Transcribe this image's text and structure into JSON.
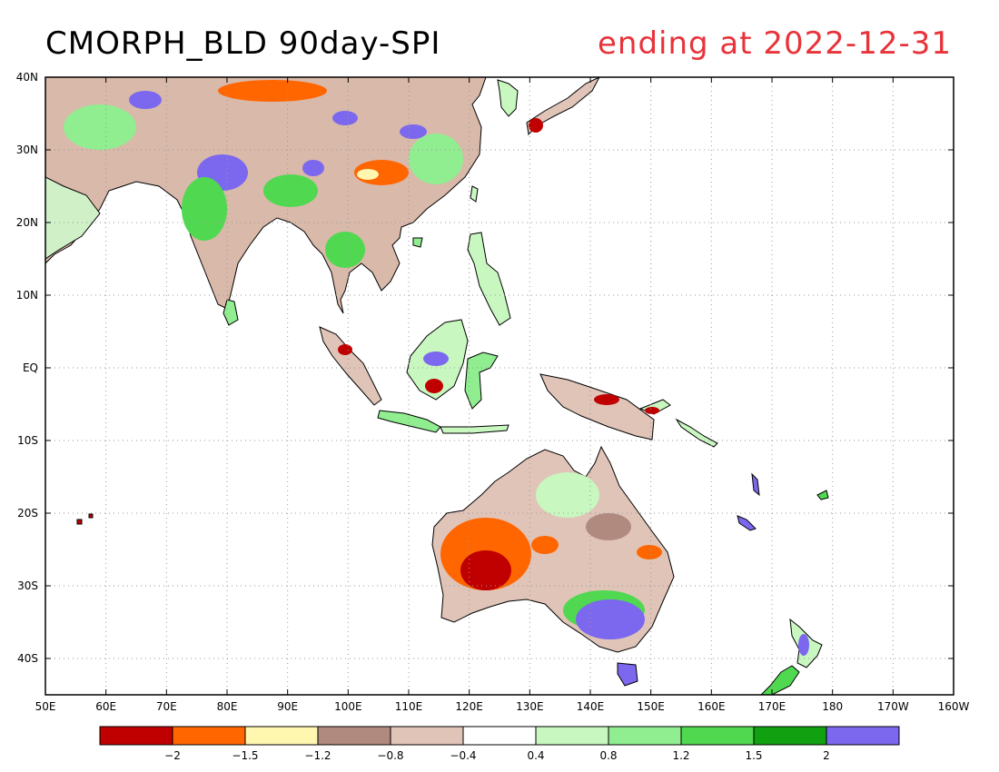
{
  "title": "CMORPH_BLD 90day-SPI",
  "subtitle": "ending at 2022-12-31",
  "map": {
    "lon_range": [
      50,
      200
    ],
    "lat_range": [
      -45,
      40
    ],
    "lon_ticks": [
      "50E",
      "60E",
      "70E",
      "80E",
      "90E",
      "100E",
      "110E",
      "120E",
      "130E",
      "140E",
      "150E",
      "160E",
      "170E",
      "180",
      "170W",
      "160W"
    ],
    "lat_ticks": [
      "40N",
      "30N",
      "20N",
      "10N",
      "EQ",
      "10S",
      "20S",
      "30S",
      "40S"
    ],
    "grid": true
  },
  "colorbar": {
    "colors": [
      "#c00000",
      "#ff6600",
      "#fff6b0",
      "#b08a7e",
      "#e0c4b8",
      "#ffffff",
      "#c8f7c0",
      "#90ee90",
      "#50d850",
      "#10a010",
      "#7b68ee"
    ],
    "tick_labels": [
      "−2",
      "−1.5",
      "−1.2",
      "−0.8",
      "−0.4",
      "0.4",
      "0.8",
      "1.2",
      "1.5",
      "2"
    ]
  }
}
